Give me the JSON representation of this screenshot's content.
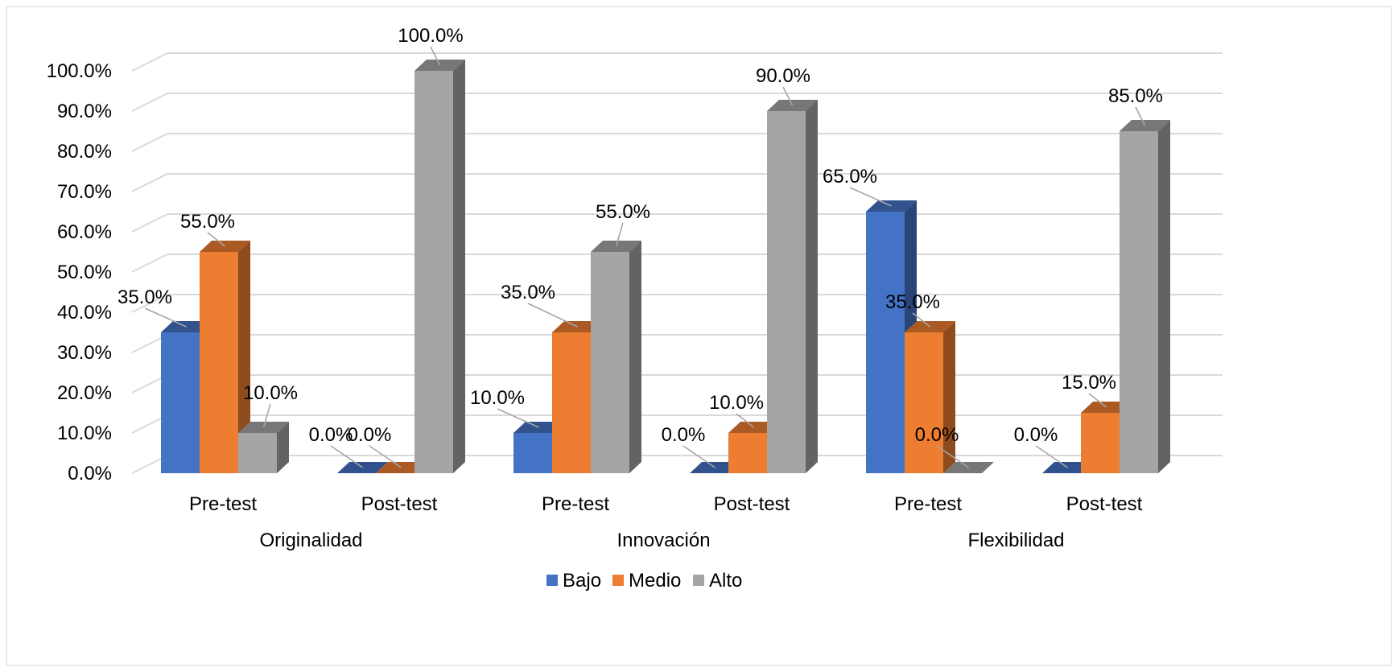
{
  "chart_data": {
    "type": "bar",
    "groups": [
      "Originalidad",
      "Innovación",
      "Flexibilidad"
    ],
    "categories": [
      "Pre-test",
      "Post-test",
      "Pre-test",
      "Post-test",
      "Pre-test",
      "Post-test"
    ],
    "series": [
      {
        "name": "Bajo",
        "color": "#4472c4",
        "values": [
          35,
          0,
          10,
          0,
          65,
          0
        ]
      },
      {
        "name": "Medio",
        "color": "#ed7d31",
        "values": [
          55,
          0,
          35,
          10,
          35,
          15
        ]
      },
      {
        "name": "Alto",
        "color": "#a5a5a5",
        "values": [
          10,
          100,
          55,
          90,
          0,
          85
        ]
      }
    ],
    "y_ticks": [
      "0.0%",
      "10.0%",
      "20.0%",
      "30.0%",
      "40.0%",
      "50.0%",
      "60.0%",
      "70.0%",
      "80.0%",
      "90.0%",
      "100.0%"
    ],
    "ylim": [
      0,
      100
    ],
    "value_format": "percent, 1 decimal",
    "grid": true,
    "legend_position": "bottom",
    "style": "3d-column"
  }
}
